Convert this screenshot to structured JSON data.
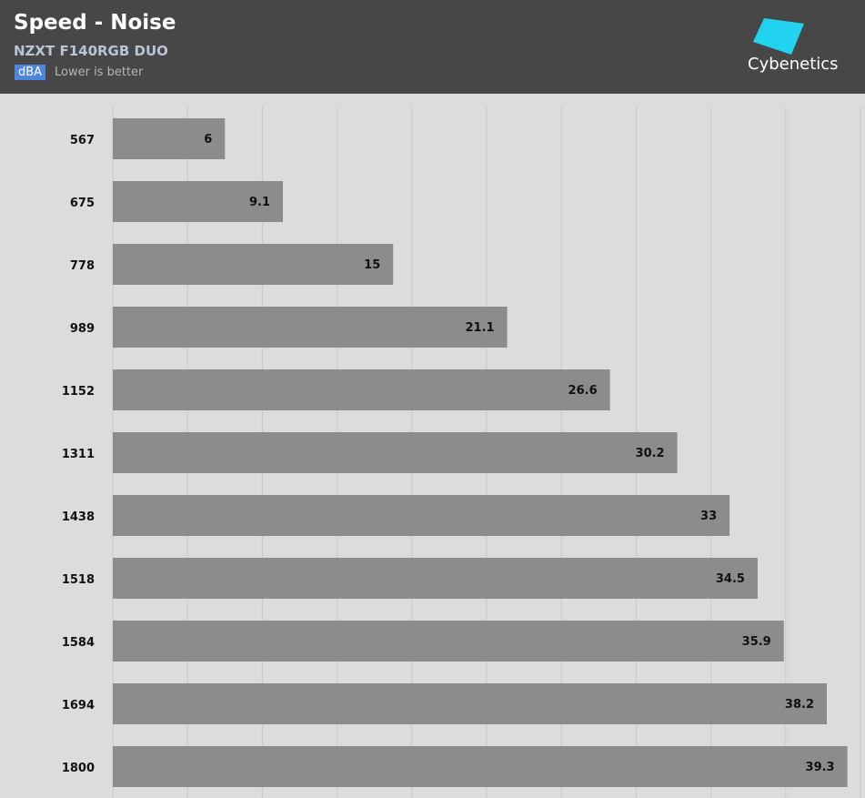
{
  "chart_data": {
    "type": "bar",
    "orientation": "horizontal",
    "title": "Speed - Noise",
    "subtitle": "NZXT F140RGB DUO",
    "unit": "dBA",
    "note": "Lower is better",
    "logo": "Cybenetics",
    "categories": [
      "567",
      "675",
      "778",
      "989",
      "1152",
      "1311",
      "1438",
      "1518",
      "1584",
      "1694",
      "1800"
    ],
    "values": [
      6,
      9.1,
      15,
      21.1,
      26.6,
      30.2,
      33,
      34.5,
      35.9,
      38.2,
      39.3
    ],
    "color": "#8c8c8c",
    "xlim": [
      0,
      40
    ],
    "xticks": [
      0,
      4,
      8,
      12,
      16,
      20,
      24,
      28,
      32,
      36,
      40
    ],
    "grid": true
  }
}
